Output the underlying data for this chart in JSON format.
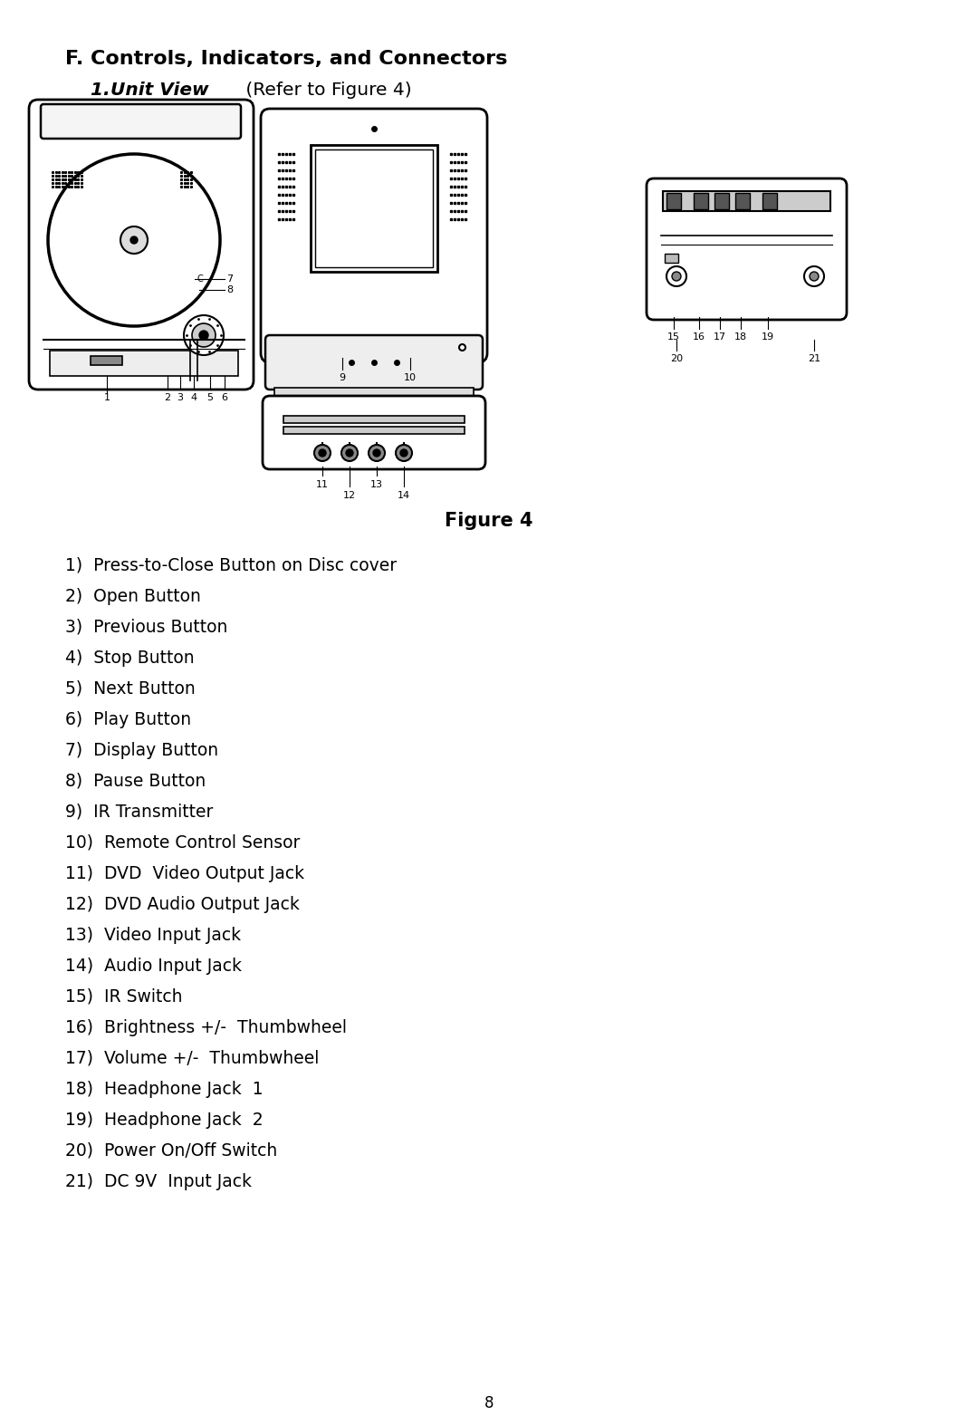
{
  "title_line1": "F. Controls, Indicators, and Connectors",
  "title_line2_bi": "1. Unit View",
  "title_line2_reg": " (Refer to Figure 4)",
  "figure_caption": "Figure 4",
  "page_number": "8",
  "items": [
    "1)  Press-to-Close Button on Disc cover",
    "2)  Open Button",
    "3)  Previous Button",
    "4)  Stop Button",
    "5)  Next Button",
    "6)  Play Button",
    "7)  Display Button",
    "8)  Pause Button",
    "9)  IR Transmitter",
    "10)  Remote Control Sensor",
    "11)  DVD  Video Output Jack",
    "12)  DVD Audio Output Jack",
    "13)  Video Input Jack",
    "14)  Audio Input Jack",
    "15)  IR Switch",
    "16)  Brightness +/-  Thumbwheel",
    "17)  Volume +/-  Thumbwheel",
    "18)  Headphone Jack  1",
    "19)  Headphone Jack  2",
    "20)  Power On/Off Switch",
    "21)  DC 9V  Input Jack"
  ],
  "background_color": "#ffffff",
  "text_color": "#000000"
}
